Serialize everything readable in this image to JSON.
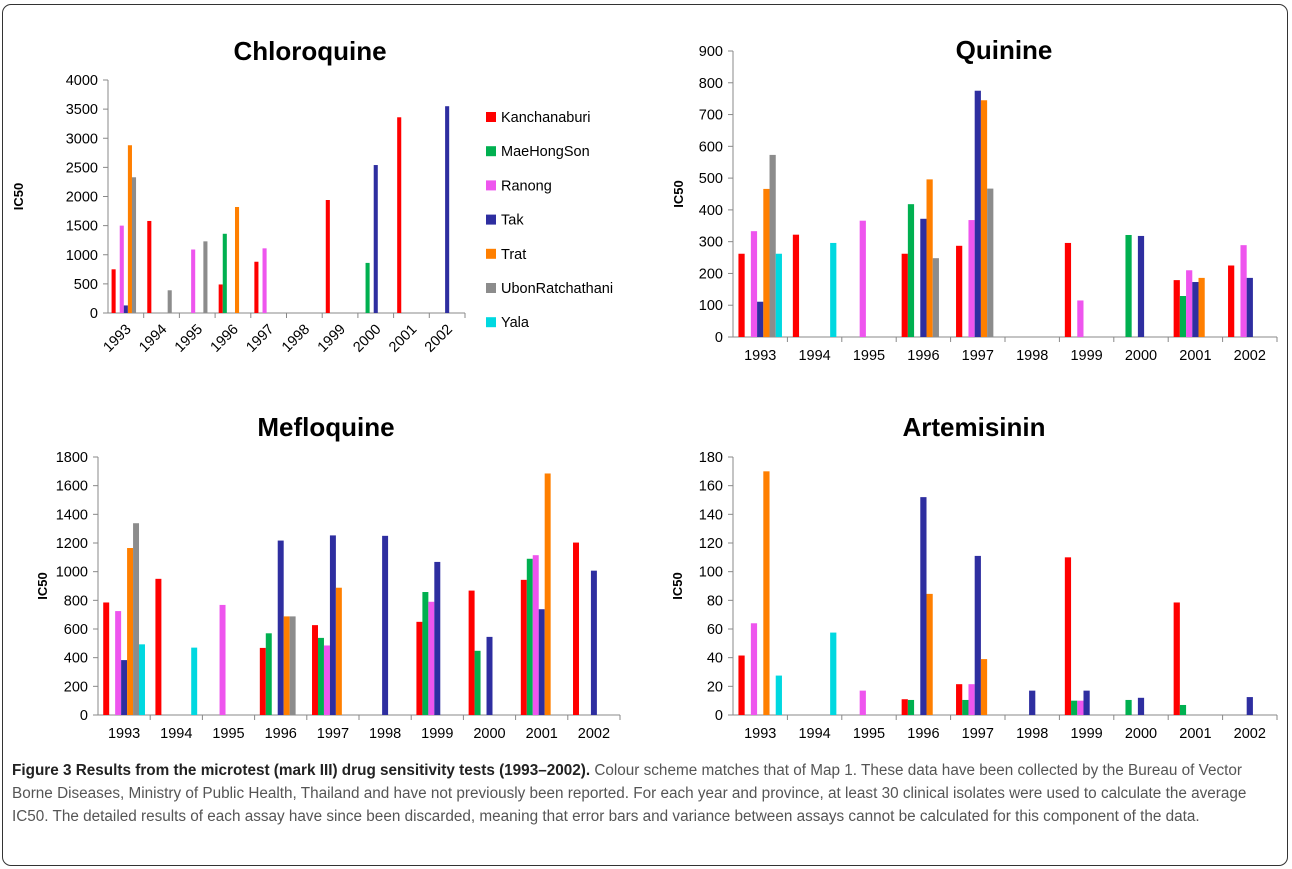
{
  "colors": {
    "Kanchanaburi": "#ff0000",
    "MaeHongSon": "#00b050",
    "Ranong": "#ee55ee",
    "Tak": "#2e2ea0",
    "Trat": "#ff7f00",
    "UbonRatchathani": "#8c8c8c",
    "Yala": "#00d8e0"
  },
  "legend": [
    "Kanchanaburi",
    "MaeHongSon",
    "Ranong",
    "Tak",
    "Trat",
    "UbonRatchathani",
    "Yala"
  ],
  "caption": {
    "title": "Figure 3 Results from the microtest (mark III) drug sensitivity tests (1993–2002).",
    "body": " Colour scheme matches that of Map 1. These data have been collected by the Bureau of Vector Borne Diseases, Ministry of Public Health, Thailand and have not previously been reported. For each year and province, at least 30 clinical isolates were used to calculate the average IC50. The detailed results of each assay have since been discarded, meaning that error bars and variance between assays cannot be calculated for this component of the data."
  },
  "chart_data": [
    {
      "type": "bar",
      "title": "Chloroquine",
      "ylabel": "IC50",
      "ylim": [
        0,
        4000
      ],
      "yticks": [
        0,
        500,
        1000,
        1500,
        2000,
        2500,
        3000,
        3500,
        4000
      ],
      "categories": [
        "1993",
        "1994",
        "1995",
        "1996",
        "1997",
        "1998",
        "1999",
        "2000",
        "2001",
        "2002"
      ],
      "xlabel_rotated": true,
      "legend_position": "right",
      "series": [
        {
          "name": "Kanchanaburi",
          "values": [
            750,
            1580,
            null,
            490,
            880,
            null,
            1940,
            null,
            3360,
            null
          ]
        },
        {
          "name": "MaeHongSon",
          "values": [
            null,
            null,
            null,
            1360,
            null,
            null,
            null,
            860,
            null,
            null
          ]
        },
        {
          "name": "Ranong",
          "values": [
            1500,
            null,
            1090,
            null,
            1110,
            null,
            null,
            null,
            null,
            null
          ]
        },
        {
          "name": "Tak",
          "values": [
            130,
            null,
            null,
            null,
            null,
            null,
            null,
            2540,
            null,
            3550
          ]
        },
        {
          "name": "Trat",
          "values": [
            2880,
            null,
            null,
            1820,
            null,
            null,
            null,
            null,
            null,
            null
          ]
        },
        {
          "name": "UbonRatchathani",
          "values": [
            2330,
            390,
            1230,
            null,
            null,
            null,
            null,
            null,
            null,
            null
          ]
        },
        {
          "name": "Yala",
          "values": [
            null,
            null,
            null,
            null,
            null,
            null,
            null,
            null,
            null,
            null
          ]
        }
      ]
    },
    {
      "type": "bar",
      "title": "Quinine",
      "ylabel": "IC50",
      "ylim": [
        0,
        900
      ],
      "yticks": [
        0,
        100,
        200,
        300,
        400,
        500,
        600,
        700,
        800,
        900
      ],
      "categories": [
        "1993",
        "1994",
        "1995",
        "1996",
        "1997",
        "1998",
        "1999",
        "2000",
        "2001",
        "2002"
      ],
      "series": [
        {
          "name": "Kanchanaburi",
          "values": [
            262,
            322,
            null,
            262,
            287,
            null,
            296,
            null,
            179,
            225
          ]
        },
        {
          "name": "MaeHongSon",
          "values": [
            null,
            null,
            null,
            418,
            null,
            null,
            null,
            321,
            129,
            null
          ]
        },
        {
          "name": "Ranong",
          "values": [
            333,
            null,
            366,
            null,
            368,
            null,
            115,
            null,
            210,
            289
          ]
        },
        {
          "name": "Tak",
          "values": [
            111,
            null,
            null,
            372,
            775,
            null,
            null,
            318,
            173,
            186
          ]
        },
        {
          "name": "Trat",
          "values": [
            466,
            null,
            null,
            496,
            745,
            null,
            null,
            null,
            186,
            null
          ]
        },
        {
          "name": "UbonRatchathani",
          "values": [
            573,
            null,
            null,
            248,
            467,
            null,
            null,
            null,
            null,
            null
          ]
        },
        {
          "name": "Yala",
          "values": [
            262,
            296,
            null,
            null,
            null,
            null,
            null,
            null,
            null,
            null
          ]
        }
      ]
    },
    {
      "type": "bar",
      "title": "Mefloquine",
      "ylabel": "IC50",
      "ylim": [
        0,
        1800
      ],
      "yticks": [
        0,
        200,
        400,
        600,
        800,
        1000,
        1200,
        1400,
        1600,
        1800
      ],
      "categories": [
        "1993",
        "1994",
        "1995",
        "1996",
        "1997",
        "1998",
        "1999",
        "2000",
        "2001",
        "2002"
      ],
      "series": [
        {
          "name": "Kanchanaburi",
          "values": [
            785,
            950,
            null,
            468,
            627,
            null,
            650,
            868,
            943,
            1203
          ]
        },
        {
          "name": "MaeHongSon",
          "values": [
            null,
            null,
            null,
            570,
            538,
            null,
            858,
            448,
            1090,
            null
          ]
        },
        {
          "name": "Ranong",
          "values": [
            725,
            null,
            768,
            null,
            485,
            null,
            790,
            null,
            1115,
            null
          ]
        },
        {
          "name": "Tak",
          "values": [
            383,
            null,
            null,
            1217,
            1253,
            1250,
            1068,
            545,
            738,
            1007
          ]
        },
        {
          "name": "Trat",
          "values": [
            1165,
            null,
            null,
            688,
            888,
            null,
            null,
            null,
            1685,
            null
          ]
        },
        {
          "name": "UbonRatchathani",
          "values": [
            1338,
            null,
            null,
            688,
            null,
            null,
            null,
            null,
            null,
            null
          ]
        },
        {
          "name": "Yala",
          "values": [
            493,
            470,
            null,
            null,
            null,
            null,
            null,
            null,
            null,
            null
          ]
        }
      ]
    },
    {
      "type": "bar",
      "title": "Artemisinin",
      "ylabel": "IC50",
      "ylim": [
        0,
        180
      ],
      "yticks": [
        0,
        20,
        40,
        60,
        80,
        100,
        120,
        140,
        160,
        180
      ],
      "categories": [
        "1993",
        "1994",
        "1995",
        "1996",
        "1997",
        "1998",
        "1999",
        "2000",
        "2001",
        "2002"
      ],
      "series": [
        {
          "name": "Kanchanaburi",
          "values": [
            41.5,
            null,
            null,
            11,
            21.5,
            null,
            110,
            null,
            78.5,
            null
          ]
        },
        {
          "name": "MaeHongSon",
          "values": [
            null,
            null,
            null,
            10.5,
            10.5,
            null,
            10,
            10.5,
            7,
            null
          ]
        },
        {
          "name": "Ranong",
          "values": [
            64,
            null,
            17,
            null,
            21.5,
            null,
            10,
            null,
            null,
            null
          ]
        },
        {
          "name": "Tak",
          "values": [
            null,
            null,
            null,
            152,
            111,
            17,
            17,
            12,
            null,
            12.5
          ]
        },
        {
          "name": "Trat",
          "values": [
            170,
            null,
            null,
            84.5,
            39,
            null,
            null,
            null,
            null,
            null
          ]
        },
        {
          "name": "UbonRatchathani",
          "values": [
            null,
            null,
            null,
            null,
            null,
            null,
            null,
            null,
            null,
            null
          ]
        },
        {
          "name": "Yala",
          "values": [
            27.5,
            57.5,
            null,
            null,
            null,
            null,
            null,
            null,
            null,
            null
          ]
        }
      ]
    }
  ]
}
